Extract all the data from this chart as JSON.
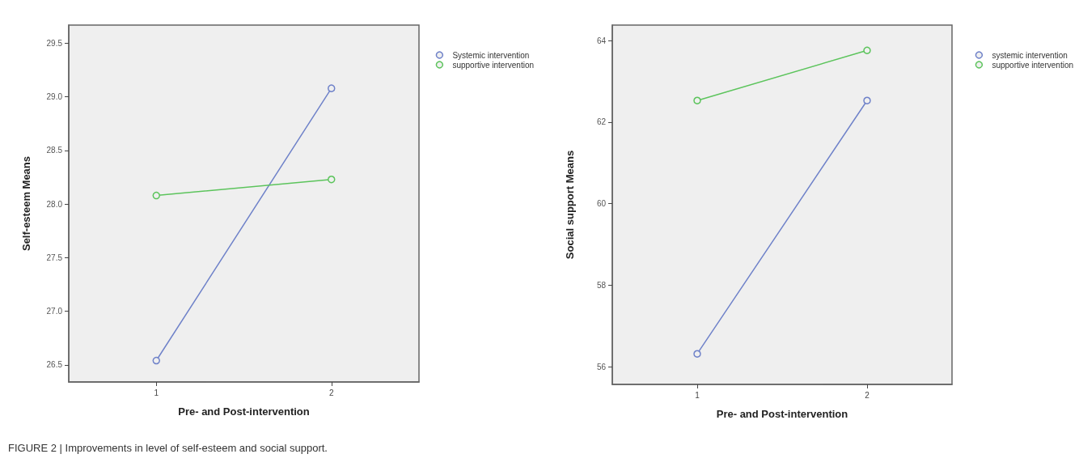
{
  "chart_data": [
    {
      "type": "line",
      "xlabel": "Pre- and Post-intervention",
      "ylabel": "Self-esteem Means",
      "categories": [
        "1",
        "2"
      ],
      "series": [
        {
          "name": "Systemic intervention",
          "color": "#6f82c9",
          "values": [
            26.54,
            29.08
          ]
        },
        {
          "name": "supportive intervention",
          "color": "#5cc45c",
          "values": [
            28.08,
            28.23
          ]
        }
      ],
      "ylim": [
        26.34,
        29.67
      ],
      "yticks": [
        26.5,
        {
          "value": 27,
          "label": "27.0"
        },
        27.5,
        {
          "value": 28,
          "label": "28.0"
        },
        28.5,
        {
          "value": 29,
          "label": "29.0"
        },
        29.5
      ],
      "marker": "circle",
      "legend": "top right",
      "grid": false,
      "annotations": [
        "FIGURE 2 | Improvements in level of self-esteem and social support."
      ]
    },
    {
      "type": "line",
      "xlabel": "Pre- and Post-intervention",
      "ylabel": "Social support Means",
      "categories": [
        "1",
        "2"
      ],
      "series": [
        {
          "name": "systemic intervention",
          "color": "#6f82c9",
          "values": [
            56.32,
            62.53
          ]
        },
        {
          "name": "supportive intervention",
          "color": "#5cc45c",
          "values": [
            62.53,
            63.76
          ]
        }
      ],
      "ylim": [
        55.57,
        64.38
      ],
      "yticks": [
        56,
        58,
        60,
        62,
        64
      ],
      "marker": "circle",
      "legend": "top right",
      "grid": false
    }
  ]
}
